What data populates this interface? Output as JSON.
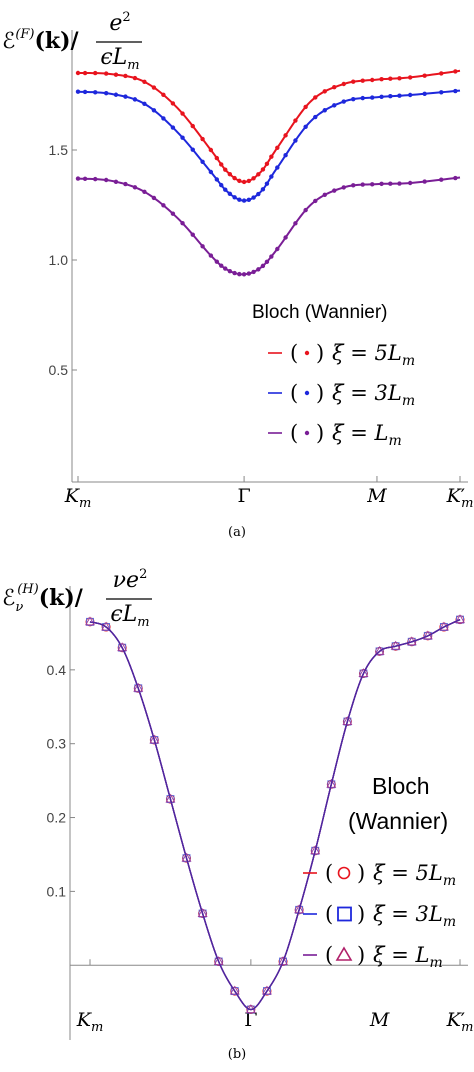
{
  "chart_data": [
    {
      "type": "line",
      "ylabel": "ℰ(F)(k) / e²/(ϵLm)",
      "ylabel_parts": {
        "main": "ℰ",
        "sup": "(F)",
        "arg": "(k)/",
        "num": "e",
        "num_sup": "2",
        "den": "ϵL",
        "den_sub": "m"
      },
      "x_ticks": [
        "Km",
        "Γ",
        "M",
        "K′m"
      ],
      "x_tick_parts": [
        {
          "main": "K",
          "sub": "m",
          "prime": ""
        },
        {
          "main": "Γ",
          "sub": "",
          "prime": ""
        },
        {
          "main": "M",
          "sub": "",
          "prime": ""
        },
        {
          "main": "K",
          "sub": "m",
          "prime": "′"
        }
      ],
      "x_tick_positions": [
        0,
        1,
        1.8,
        2.3
      ],
      "y_ticks": [
        "0.5",
        "1.0",
        "1.5"
      ],
      "y_tick_values": [
        0.5,
        1.0,
        1.5
      ],
      "ylim": [
        0.0,
        2.0
      ],
      "xlim": [
        0,
        2.3
      ],
      "legend_title": "Bloch (Wannier)",
      "caption": "(a)",
      "series": [
        {
          "name": "(·) ξ = 5Lm",
          "label_paren": "(",
          "label_paren_close": ")",
          "label_text": "ξ = 5L",
          "label_sub": "m",
          "color": "#e8141e",
          "x": [
            0,
            0.2,
            0.4,
            0.6,
            0.8,
            0.9,
            1.0,
            1.1,
            1.2,
            1.4,
            1.6,
            1.8,
            2.0,
            2.3
          ],
          "y": [
            1.85,
            1.845,
            1.81,
            1.69,
            1.5,
            1.4,
            1.355,
            1.4,
            1.51,
            1.72,
            1.8,
            1.82,
            1.83,
            1.86
          ]
        },
        {
          "name": "(·) ξ = 3Lm",
          "label_paren": "(",
          "label_paren_close": ")",
          "label_text": "ξ = 3L",
          "label_sub": "m",
          "color": "#1e28dc",
          "x": [
            0,
            0.2,
            0.4,
            0.6,
            0.8,
            0.9,
            1.0,
            1.1,
            1.2,
            1.4,
            1.6,
            1.8,
            2.0,
            2.3
          ],
          "y": [
            1.765,
            1.755,
            1.71,
            1.58,
            1.4,
            1.31,
            1.27,
            1.31,
            1.42,
            1.63,
            1.72,
            1.74,
            1.75,
            1.77
          ]
        },
        {
          "name": "(·) ξ = Lm",
          "label_paren": "(",
          "label_paren_close": ")",
          "label_text": "ξ = L",
          "label_sub": "m",
          "color": "#7a1e96",
          "x": [
            0,
            0.2,
            0.4,
            0.6,
            0.8,
            0.9,
            1.0,
            1.1,
            1.2,
            1.4,
            1.6,
            1.8,
            2.0,
            2.3
          ],
          "y": [
            1.37,
            1.36,
            1.31,
            1.19,
            1.02,
            0.955,
            0.935,
            0.965,
            1.05,
            1.25,
            1.33,
            1.345,
            1.35,
            1.375
          ]
        }
      ]
    },
    {
      "type": "line",
      "ylabel": "ℰν(H)(k) / νe²/(ϵLm)",
      "ylabel_parts": {
        "main": "ℰ",
        "sub": "ν",
        "sup": "(H)",
        "arg": "(k)/",
        "num": "νe",
        "num_sup": "2",
        "den": "ϵL",
        "den_sub": "m"
      },
      "x_ticks": [
        "Km",
        "Γ",
        "M",
        "K′m"
      ],
      "x_tick_parts": [
        {
          "main": "K",
          "sub": "m",
          "prime": ""
        },
        {
          "main": "Γ",
          "sub": "",
          "prime": ""
        },
        {
          "main": "M",
          "sub": "",
          "prime": ""
        },
        {
          "main": "K",
          "sub": "m",
          "prime": "′"
        }
      ],
      "x_tick_positions": [
        0,
        1,
        1.8,
        2.3
      ],
      "y_ticks": [
        "0.1",
        "0.2",
        "0.3",
        "0.4"
      ],
      "y_tick_values": [
        0.1,
        0.2,
        0.3,
        0.4
      ],
      "ylim": [
        -0.085,
        0.5
      ],
      "xlim": [
        0,
        2.3
      ],
      "legend_title_lines": [
        "Bloch",
        "(Wannier)"
      ],
      "caption": "(b)",
      "series": [
        {
          "name": "(○) ξ = 5Lm",
          "marker": "circle",
          "label_paren": "(",
          "label_paren_close": ")",
          "label_text": "ξ = 5L",
          "label_sub": "m",
          "color": "#e8141e",
          "x": [
            0,
            0.1,
            0.2,
            0.3,
            0.4,
            0.5,
            0.6,
            0.7,
            0.8,
            0.9,
            1.0,
            1.1,
            1.2,
            1.3,
            1.4,
            1.5,
            1.6,
            1.7,
            1.8,
            1.9,
            2.0,
            2.1,
            2.2,
            2.3
          ],
          "y": [
            0.465,
            0.458,
            0.43,
            0.375,
            0.305,
            0.225,
            0.145,
            0.07,
            0.005,
            -0.035,
            -0.06,
            -0.035,
            0.005,
            0.075,
            0.155,
            0.245,
            0.33,
            0.395,
            0.425,
            0.432,
            0.438,
            0.446,
            0.458,
            0.468
          ]
        },
        {
          "name": "(□) ξ = 3Lm",
          "marker": "square",
          "label_paren": "(",
          "label_paren_close": ")",
          "label_text": "ξ = 3L",
          "label_sub": "m",
          "color": "#1e28dc",
          "x": [
            0,
            0.1,
            0.2,
            0.3,
            0.4,
            0.5,
            0.6,
            0.7,
            0.8,
            0.9,
            1.0,
            1.1,
            1.2,
            1.3,
            1.4,
            1.5,
            1.6,
            1.7,
            1.8,
            1.9,
            2.0,
            2.1,
            2.2,
            2.3
          ],
          "y": [
            0.465,
            0.458,
            0.43,
            0.375,
            0.305,
            0.225,
            0.145,
            0.07,
            0.005,
            -0.035,
            -0.06,
            -0.035,
            0.005,
            0.075,
            0.155,
            0.245,
            0.33,
            0.395,
            0.425,
            0.432,
            0.438,
            0.446,
            0.458,
            0.468
          ]
        },
        {
          "name": "(△) ξ = Lm",
          "marker": "triangle",
          "label_paren": "(",
          "label_paren_close": ")",
          "label_text": "ξ = L",
          "label_sub": "m",
          "color": "#7a1e96",
          "x": [
            0,
            0.1,
            0.2,
            0.3,
            0.4,
            0.5,
            0.6,
            0.7,
            0.8,
            0.9,
            1.0,
            1.1,
            1.2,
            1.3,
            1.4,
            1.5,
            1.6,
            1.7,
            1.8,
            1.9,
            2.0,
            2.1,
            2.2,
            2.3
          ],
          "y": [
            0.465,
            0.458,
            0.43,
            0.375,
            0.305,
            0.225,
            0.145,
            0.07,
            0.005,
            -0.035,
            -0.06,
            -0.035,
            0.005,
            0.075,
            0.155,
            0.245,
            0.33,
            0.395,
            0.425,
            0.432,
            0.438,
            0.446,
            0.458,
            0.468
          ]
        }
      ]
    }
  ]
}
